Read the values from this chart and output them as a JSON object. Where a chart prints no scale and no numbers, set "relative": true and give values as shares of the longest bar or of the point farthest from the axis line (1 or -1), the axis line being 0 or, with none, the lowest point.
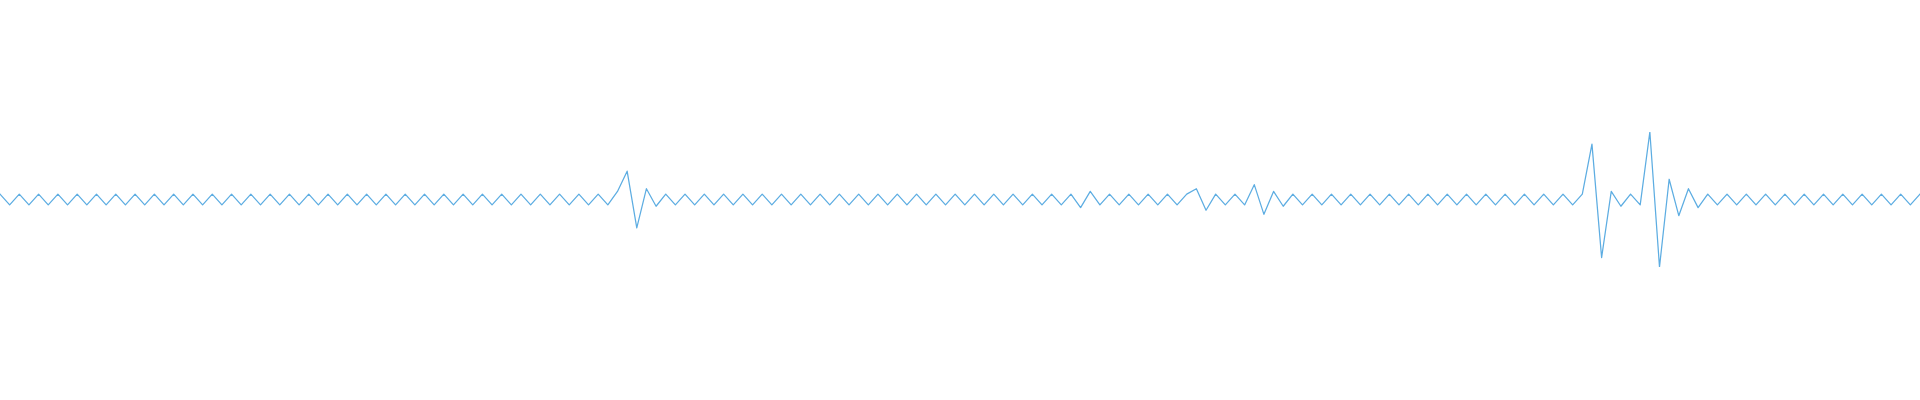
{
  "chart_data": {
    "type": "line",
    "relative": true,
    "marker": "none",
    "line_style": "solid",
    "categories": [
      null,
      null,
      null,
      null,
      null,
      null,
      null,
      null,
      null,
      null,
      null,
      null,
      null,
      null,
      null,
      null,
      null,
      null,
      null,
      null,
      null,
      null,
      null,
      null,
      null,
      null,
      null,
      null,
      null,
      null,
      null,
      null,
      null,
      null,
      null,
      null,
      null,
      null,
      null,
      null,
      null,
      null,
      null,
      null,
      null,
      null,
      null,
      null,
      null,
      null,
      null,
      null,
      null,
      null,
      null,
      null,
      null,
      null,
      null,
      null,
      null,
      null,
      null,
      null,
      null,
      null,
      null,
      null,
      null,
      null,
      null,
      null,
      null,
      null,
      null,
      null,
      null,
      null,
      null,
      null,
      null,
      null,
      null,
      null,
      null,
      null,
      null,
      null,
      null,
      null,
      null,
      null,
      null,
      null,
      null,
      null,
      null,
      null,
      null,
      null,
      null,
      null,
      null,
      null,
      null,
      null,
      null,
      null,
      null,
      null,
      null,
      null,
      null,
      null,
      null,
      null,
      null,
      null,
      null,
      null,
      null,
      null,
      null,
      null,
      null,
      null,
      null,
      null,
      null,
      null,
      null,
      null,
      null,
      null,
      null,
      null,
      null,
      null,
      null,
      null,
      null,
      null,
      null,
      null,
      null,
      null,
      null,
      null,
      null,
      null,
      null,
      null,
      null,
      null,
      null,
      null,
      null,
      null,
      null,
      null,
      null,
      null,
      null,
      null,
      null,
      null,
      null,
      null,
      null,
      null,
      null,
      null,
      null,
      null,
      null,
      null,
      null,
      null,
      null,
      null,
      null,
      null,
      null,
      null,
      null,
      null,
      null,
      null,
      null,
      null,
      null,
      null,
      null,
      null,
      null,
      null,
      null,
      null,
      null,
      null
    ],
    "series": [
      {
        "color": "#5dade2",
        "values": [
          0.54,
          0.46,
          0.54,
          0.46,
          0.54,
          0.46,
          0.54,
          0.46,
          0.54,
          0.46,
          0.54,
          0.46,
          0.54,
          0.46,
          0.54,
          0.46,
          0.54,
          0.46,
          0.54,
          0.46,
          0.54,
          0.46,
          0.54,
          0.46,
          0.54,
          0.46,
          0.54,
          0.46,
          0.54,
          0.46,
          0.54,
          0.46,
          0.54,
          0.46,
          0.54,
          0.46,
          0.54,
          0.46,
          0.54,
          0.46,
          0.54,
          0.46,
          0.54,
          0.46,
          0.54,
          0.46,
          0.54,
          0.46,
          0.54,
          0.46,
          0.54,
          0.46,
          0.54,
          0.46,
          0.54,
          0.46,
          0.54,
          0.46,
          0.54,
          0.46,
          0.54,
          0.46,
          0.54,
          0.46,
          0.56,
          0.71,
          0.29,
          0.58,
          0.45,
          0.54,
          0.46,
          0.54,
          0.46,
          0.54,
          0.46,
          0.54,
          0.46,
          0.54,
          0.46,
          0.54,
          0.46,
          0.54,
          0.46,
          0.54,
          0.46,
          0.54,
          0.46,
          0.54,
          0.46,
          0.54,
          0.46,
          0.54,
          0.46,
          0.54,
          0.46,
          0.54,
          0.46,
          0.54,
          0.46,
          0.54,
          0.46,
          0.54,
          0.46,
          0.54,
          0.46,
          0.54,
          0.46,
          0.54,
          0.46,
          0.54,
          0.46,
          0.54,
          0.44,
          0.56,
          0.46,
          0.54,
          0.46,
          0.54,
          0.46,
          0.54,
          0.46,
          0.54,
          0.46,
          0.54,
          0.58,
          0.42,
          0.54,
          0.46,
          0.54,
          0.46,
          0.61,
          0.39,
          0.56,
          0.45,
          0.54,
          0.46,
          0.54,
          0.46,
          0.54,
          0.46,
          0.54,
          0.46,
          0.54,
          0.46,
          0.54,
          0.46,
          0.54,
          0.46,
          0.54,
          0.46,
          0.54,
          0.46,
          0.54,
          0.46,
          0.54,
          0.46,
          0.54,
          0.46,
          0.54,
          0.46,
          0.54,
          0.46,
          0.54,
          0.46,
          0.54,
          0.91,
          0.07,
          0.56,
          0.45,
          0.54,
          0.46,
          1,
          0,
          0.65,
          0.38,
          0.58,
          0.44,
          0.54,
          0.46,
          0.54,
          0.46,
          0.54,
          0.46,
          0.54,
          0.46,
          0.54,
          0.46,
          0.54,
          0.46,
          0.54,
          0.46,
          0.54,
          0.46,
          0.54,
          0.46,
          0.54,
          0.46,
          0.54,
          0.46,
          0.54
        ]
      }
    ]
  }
}
